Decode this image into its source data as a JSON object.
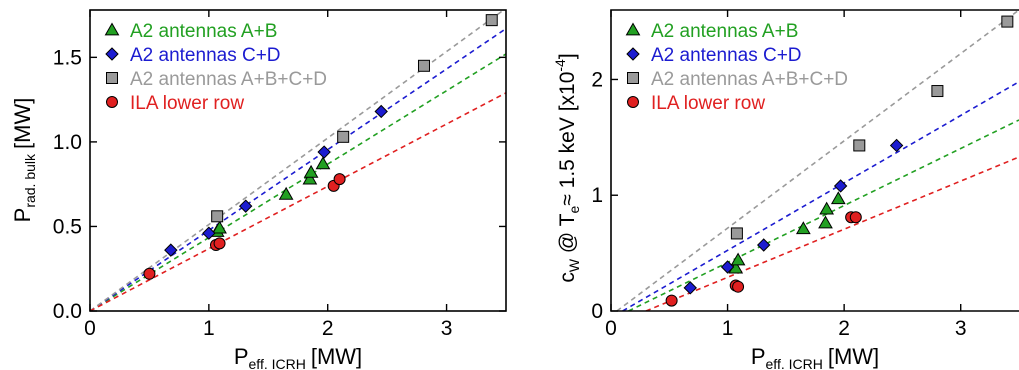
{
  "chart_data": [
    {
      "type": "scatter",
      "xlabel_main": "P",
      "xlabel_sub": "eff. ICRH",
      "xlabel_unit": "[MW]",
      "ylabel_main": "P",
      "ylabel_sub": "rad. bulk",
      "ylabel_unit": "[MW]",
      "xlim": [
        0,
        3.5
      ],
      "ylim": [
        0,
        1.78
      ],
      "xticks": [
        0,
        1,
        2,
        3
      ],
      "xtick_labels": [
        "0",
        "1",
        "2",
        "3"
      ],
      "yticks": [
        0,
        0.5,
        1.0,
        1.5
      ],
      "ytick_labels": [
        "0.0",
        "0.5",
        "1.0",
        "1.5"
      ],
      "legend_position": "top-left",
      "series": [
        {
          "name": "A2 antennas A+B",
          "marker": "triangle",
          "color": "#22a022",
          "x": [
            1.07,
            1.09,
            1.65,
            1.85,
            1.86,
            1.96
          ],
          "y": [
            0.47,
            0.49,
            0.69,
            0.78,
            0.82,
            0.87
          ],
          "fit": [
            [
              0,
              0
            ],
            [
              3.5,
              1.52
            ]
          ]
        },
        {
          "name": "A2 antennas C+D",
          "marker": "diamond",
          "color": "#1c1cd0",
          "x": [
            0.68,
            1.0,
            1.31,
            1.97,
            2.45
          ],
          "y": [
            0.36,
            0.46,
            0.62,
            0.94,
            1.18
          ],
          "fit": [
            [
              0,
              0
            ],
            [
              3.5,
              1.67
            ]
          ]
        },
        {
          "name": "A2 antennas A+B+C+D",
          "marker": "square",
          "color": "#9a9a9a",
          "x": [
            1.07,
            2.13,
            2.81,
            3.38
          ],
          "y": [
            0.56,
            1.03,
            1.45,
            1.72
          ],
          "fit": [
            [
              0,
              0
            ],
            [
              3.5,
              1.79
            ]
          ]
        },
        {
          "name": "ILA lower row",
          "marker": "circle",
          "color": "#e02020",
          "x": [
            0.5,
            1.06,
            1.09,
            2.05,
            2.1
          ],
          "y": [
            0.22,
            0.39,
            0.4,
            0.74,
            0.78
          ],
          "fit": [
            [
              0,
              0
            ],
            [
              3.5,
              1.29
            ]
          ]
        }
      ]
    },
    {
      "type": "scatter",
      "xlabel_main": "P",
      "xlabel_sub": "eff. ICRH",
      "xlabel_unit": "[MW]",
      "ylabel_part1": "c",
      "ylabel_sub1": "W",
      "ylabel_part2": " @ T",
      "ylabel_sub2": "e",
      "ylabel_part3": "≈ 1.5 keV [x10",
      "ylabel_sup": "-4",
      "ylabel_part4": "]",
      "xlim": [
        0,
        3.5
      ],
      "ylim": [
        0,
        2.6
      ],
      "xticks": [
        0,
        1,
        2,
        3
      ],
      "xtick_labels": [
        "0",
        "1",
        "2",
        "3"
      ],
      "yticks": [
        0,
        1,
        2
      ],
      "ytick_labels": [
        "0",
        "1",
        "2"
      ],
      "legend_position": "top-left",
      "series": [
        {
          "name": "A2 antennas A+B",
          "marker": "triangle",
          "color": "#22a022",
          "x": [
            1.07,
            1.09,
            1.65,
            1.84,
            1.85,
            1.95
          ],
          "y": [
            0.37,
            0.44,
            0.71,
            0.76,
            0.88,
            0.97
          ],
          "fit": [
            [
              0.15,
              0
            ],
            [
              3.5,
              1.65
            ]
          ]
        },
        {
          "name": "A2 antennas C+D",
          "marker": "diamond",
          "color": "#1c1cd0",
          "x": [
            0.68,
            1.0,
            1.31,
            1.97,
            2.45
          ],
          "y": [
            0.2,
            0.38,
            0.57,
            1.08,
            1.43
          ],
          "fit": [
            [
              0.1,
              0
            ],
            [
              3.5,
              1.98
            ]
          ]
        },
        {
          "name": "A2 antennas A+B+C+D",
          "marker": "square",
          "color": "#9a9a9a",
          "x": [
            1.08,
            2.13,
            2.8,
            3.4
          ],
          "y": [
            0.67,
            1.43,
            1.9,
            2.5
          ],
          "fit": [
            [
              0.05,
              0
            ],
            [
              3.5,
              2.6
            ]
          ]
        },
        {
          "name": "ILA lower row",
          "marker": "circle",
          "color": "#e02020",
          "x": [
            0.52,
            1.07,
            1.09,
            2.06,
            2.1
          ],
          "y": [
            0.09,
            0.22,
            0.21,
            0.81,
            0.81
          ],
          "fit": [
            [
              0.3,
              0
            ],
            [
              3.5,
              1.33
            ]
          ]
        }
      ]
    }
  ]
}
